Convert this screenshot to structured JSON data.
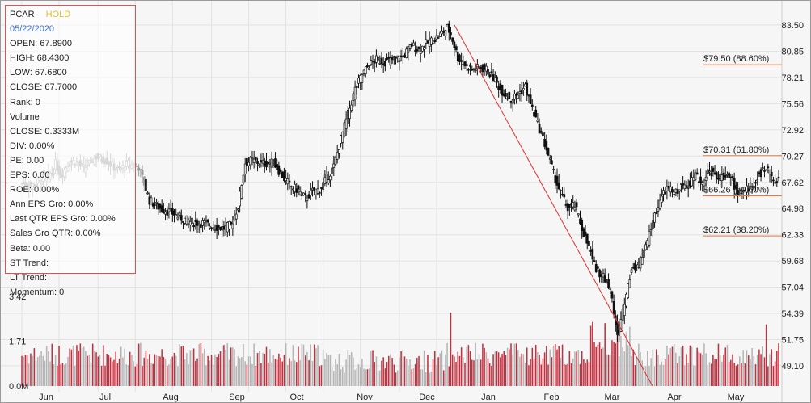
{
  "chart_data": {
    "type": "candlestick",
    "ticker": "PCAR",
    "rating": "HOLD",
    "date": "05/22/2020",
    "price_axis": {
      "ticks": [
        "83.50",
        "80.85",
        "78.21",
        "75.56",
        "72.92",
        "70.27",
        "67.62",
        "64.98",
        "62.33",
        "59.68",
        "57.04",
        "54.39",
        "51.75",
        "49.10"
      ],
      "range": [
        49.1,
        83.5
      ]
    },
    "volume_axis": {
      "ticks": [
        "3.42",
        "1.71",
        "0.0M"
      ],
      "range": [
        0,
        3.42
      ]
    },
    "months": [
      "Jun",
      "Jul",
      "Aug",
      "Sep",
      "Oct",
      "Nov",
      "Dec",
      "Jan",
      "Feb",
      "Mar",
      "Apr",
      "May"
    ],
    "fib_levels": [
      {
        "label": "$79.50 (88.60%)",
        "price": 79.5
      },
      {
        "label": "$70.31 (61.80%)",
        "price": 70.31
      },
      {
        "label": "$66.26 (50.00%)",
        "price": 66.26
      },
      {
        "label": "$62.21 (38.20%)",
        "price": 62.21
      }
    ],
    "trendline": {
      "from": {
        "date": "2019-12-12",
        "price": 83.5
      },
      "to": {
        "date": "2020-03-23",
        "price": 49.1
      }
    },
    "price_anchors": [
      [
        0,
        67.5
      ],
      [
        5,
        67.2
      ],
      [
        10,
        67.8
      ],
      [
        17,
        68.5
      ],
      [
        19,
        69.5
      ],
      [
        22,
        68.3
      ],
      [
        26,
        69.5
      ],
      [
        30,
        69.8
      ],
      [
        35,
        69.0
      ],
      [
        42,
        70.2
      ],
      [
        48,
        69.8
      ],
      [
        54,
        68.8
      ],
      [
        60,
        69.5
      ],
      [
        66,
        69.2
      ],
      [
        72,
        65.8
      ],
      [
        78,
        65.0
      ],
      [
        84,
        64.6
      ],
      [
        90,
        64.0
      ],
      [
        96,
        63.6
      ],
      [
        102,
        63.5
      ],
      [
        108,
        63.2
      ],
      [
        114,
        63.0
      ],
      [
        118,
        63.3
      ],
      [
        122,
        65.2
      ],
      [
        124,
        67.5
      ],
      [
        126,
        69.6
      ],
      [
        130,
        69.8
      ],
      [
        136,
        69.5
      ],
      [
        142,
        69.6
      ],
      [
        148,
        68.0
      ],
      [
        152,
        67.2
      ],
      [
        156,
        66.8
      ],
      [
        160,
        66.0
      ],
      [
        164,
        66.7
      ],
      [
        168,
        66.9
      ],
      [
        172,
        68.0
      ],
      [
        176,
        69.2
      ],
      [
        180,
        72.0
      ],
      [
        184,
        74.5
      ],
      [
        188,
        77.0
      ],
      [
        192,
        78.5
      ],
      [
        196,
        79.5
      ],
      [
        200,
        80.0
      ],
      [
        205,
        79.8
      ],
      [
        210,
        80.0
      ],
      [
        215,
        80.3
      ],
      [
        220,
        81.5
      ],
      [
        224,
        81.0
      ],
      [
        228,
        81.6
      ],
      [
        232,
        82.0
      ],
      [
        236,
        82.5
      ],
      [
        240,
        83.2
      ],
      [
        242,
        82.6
      ],
      [
        246,
        80.2
      ],
      [
        250,
        79.5
      ],
      [
        254,
        79.0
      ],
      [
        258,
        79.2
      ],
      [
        262,
        79.0
      ],
      [
        266,
        78.2
      ],
      [
        270,
        77.0
      ],
      [
        276,
        76.0
      ],
      [
        280,
        76.5
      ],
      [
        284,
        77.3
      ],
      [
        288,
        75.0
      ],
      [
        292,
        73.0
      ],
      [
        296,
        71.0
      ],
      [
        300,
        68.5
      ],
      [
        304,
        66.5
      ],
      [
        308,
        65.0
      ],
      [
        312,
        65.3
      ],
      [
        316,
        63.0
      ],
      [
        320,
        61.0
      ],
      [
        324,
        59.0
      ],
      [
        328,
        58.0
      ],
      [
        332,
        57.0
      ],
      [
        336,
        52.0
      ],
      [
        340,
        55.5
      ],
      [
        344,
        59.0
      ],
      [
        348,
        59.3
      ],
      [
        352,
        61.0
      ],
      [
        356,
        63.8
      ],
      [
        360,
        65.8
      ],
      [
        364,
        67.0
      ],
      [
        368,
        66.5
      ],
      [
        372,
        67.2
      ],
      [
        376,
        67.5
      ],
      [
        380,
        68.2
      ],
      [
        384,
        67.6
      ],
      [
        388,
        69.0
      ],
      [
        392,
        68.0
      ],
      [
        396,
        68.3
      ],
      [
        400,
        68.0
      ],
      [
        404,
        66.6
      ],
      [
        408,
        66.8
      ],
      [
        412,
        67.2
      ],
      [
        416,
        68.5
      ],
      [
        420,
        68.9
      ],
      [
        424,
        68.0
      ],
      [
        427,
        67.7
      ]
    ],
    "volume_peaks": [
      {
        "day": 242,
        "value": 2.8
      },
      {
        "day": 336,
        "value": 2.35
      },
      {
        "day": 420,
        "value": 2.35
      }
    ]
  },
  "info_panel": {
    "ticker": "PCAR",
    "rating": "HOLD",
    "date": "05/22/2020",
    "lines": [
      "OPEN: 67.8900",
      "HIGH: 68.4300",
      "LOW: 67.6800",
      "CLOSE: 67.7000",
      "Rank: 0",
      "Volume",
      "CLOSE: 0.3333M",
      "DIV: 0.00%",
      "PE: 0.00",
      "EPS: 0.00",
      "ROE: 0.00%",
      "Ann EPS Gro: 0.00%",
      "Last QTR EPS Gro: 0.00%",
      "Sales Gro QTR: 0.00%",
      "Beta: 0.00",
      "ST Trend:",
      "LT Trend:",
      "Momentum: 0"
    ]
  },
  "colors": {
    "up": "#111111",
    "down": "#111111",
    "volume_red": "#c0303f",
    "volume_gray": "#b5b5b5",
    "trendline": "#e03030",
    "fib": "#e87a3a",
    "grid": "#e2e2e2"
  }
}
